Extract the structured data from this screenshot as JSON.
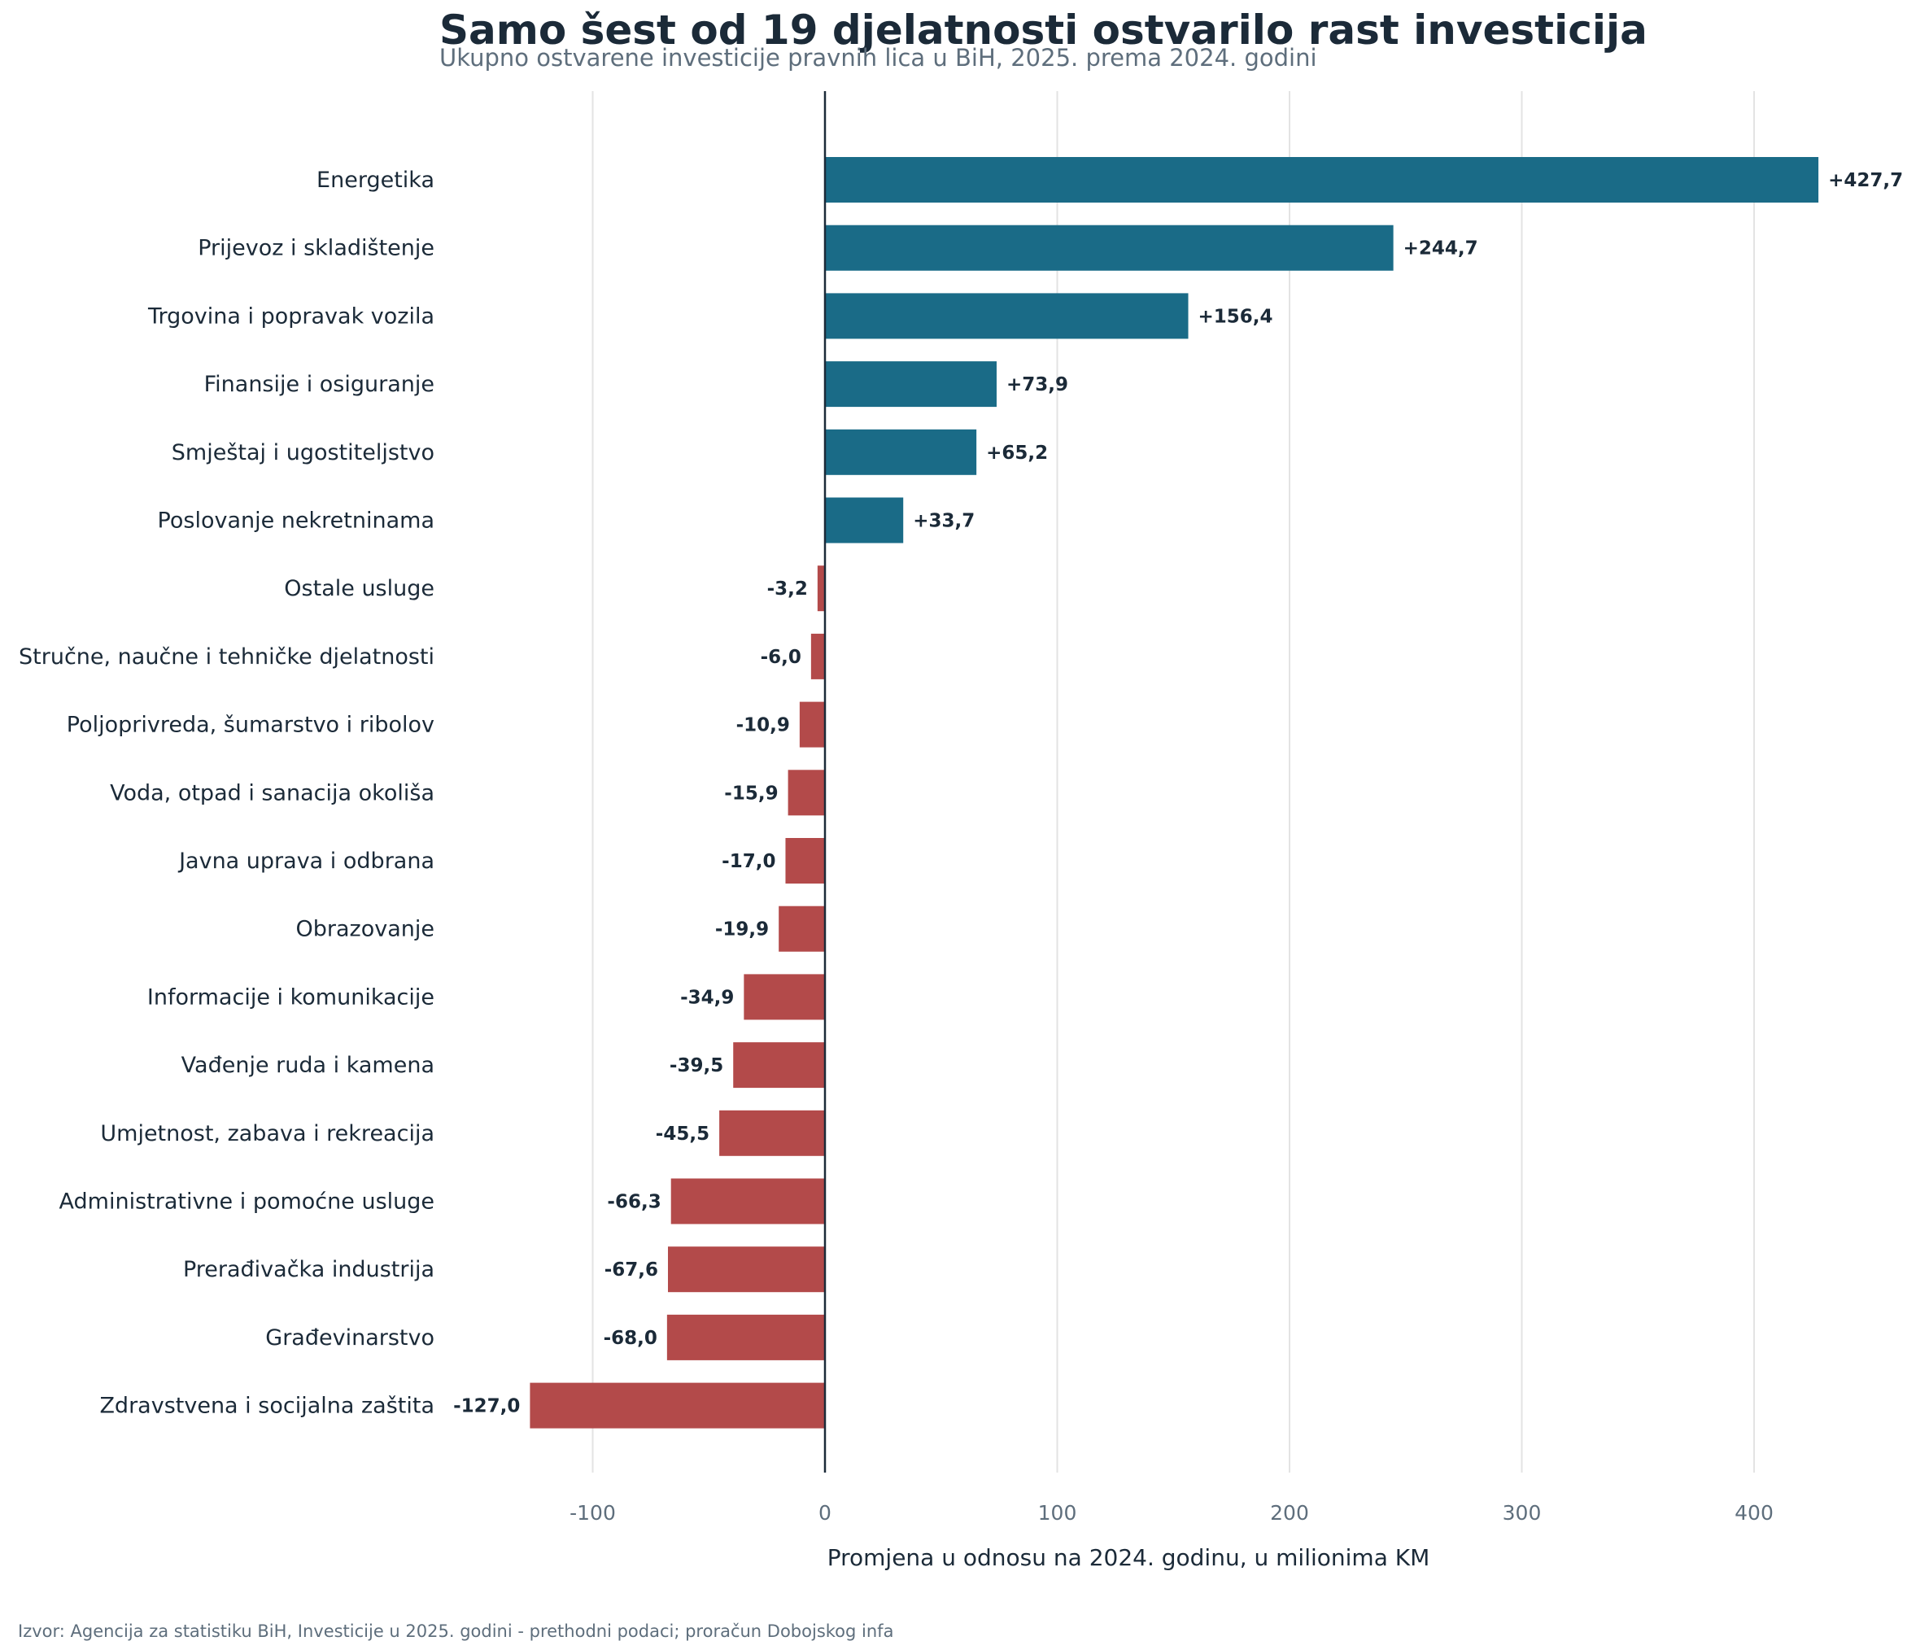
{
  "chart_data": {
    "type": "bar",
    "orientation": "horizontal",
    "title": "Samo šest od 19 djelatnosti ostvarilo rast investicija",
    "subtitle": "Ukupno ostvarene investicije pravnih lica u BiH, 2025. prema 2024. godini",
    "xlabel": "Promjena u odnosu na 2024. godinu, u milionima KM",
    "ylabel": "",
    "xlim": [
      -127,
      430
    ],
    "xticks": [
      -100,
      0,
      100,
      200,
      300,
      400
    ],
    "xtick_labels": [
      "-100",
      "0",
      "100",
      "200",
      "300",
      "400"
    ],
    "grid": "vertical",
    "categories": [
      "Energetika",
      "Prijevoz i skladištenje",
      "Trgovina i popravak vozila",
      "Finansije i osiguranje",
      "Smještaj i ugostiteljstvo",
      "Poslovanje nekretninama",
      "Ostale usluge",
      "Stručne, naučne i tehničke djelatnosti",
      "Poljoprivreda, šumarstvo i ribolov",
      "Voda, otpad i sanacija okoliša",
      "Javna uprava i odbrana",
      "Obrazovanje",
      "Informacije i komunikacije",
      "Vađenje ruda i kamena",
      "Umjetnost, zabava i rekreacija",
      "Administrativne i pomoćne usluge",
      "Prerađivačka industrija",
      "Građevinarstvo",
      "Zdravstvena i socijalna zaštita"
    ],
    "values": [
      427.7,
      244.7,
      156.4,
      73.9,
      65.2,
      33.7,
      -3.2,
      -6.0,
      -10.9,
      -15.9,
      -17.0,
      -19.9,
      -34.9,
      -39.5,
      -45.5,
      -66.3,
      -67.6,
      -68.0,
      -127.0
    ],
    "value_labels": [
      "+427,7",
      "+244,7",
      "+156,4",
      "+73,9",
      "+65,2",
      "+33,7",
      "-3,2",
      "-6,0",
      "-10,9",
      "-15,9",
      "-17,0",
      "-19,9",
      "-34,9",
      "-39,5",
      "-45,5",
      "-66,3",
      "-67,6",
      "-68,0",
      "-127,0"
    ],
    "colors": {
      "positive": "#1a6b87",
      "negative": "#b34a4a",
      "zero_line": "#1b2a38",
      "grid": "#e3e3e3"
    }
  },
  "source": "Izvor: Agencija za statistiku BiH, Investicije u 2025. godini - prethodni podaci; proračun Dobojskog infa"
}
